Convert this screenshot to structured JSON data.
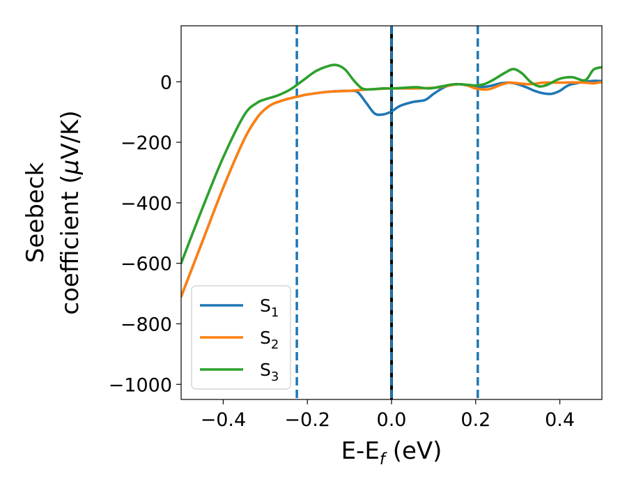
{
  "chart_data": {
    "type": "line",
    "title": "",
    "xlabel": {
      "prefix": "E-E",
      "subscript": "f",
      "suffix": " (eV)"
    },
    "ylabel": {
      "line1": "Seebeck",
      "line2_prefix": "coefficient  (",
      "line2_symbol": "μ",
      "line2_suffix": "V/K)"
    },
    "xlim": [
      -0.5,
      0.5
    ],
    "ylim": [
      -1050,
      185
    ],
    "xticks": [
      -0.4,
      -0.2,
      0.0,
      0.2,
      0.4
    ],
    "xtick_labels": [
      "−0.4",
      "−0.2",
      "0.0",
      "0.2",
      "0.4"
    ],
    "yticks": [
      0,
      -200,
      -400,
      -600,
      -800,
      -1000
    ],
    "ytick_labels": [
      "0",
      "−200",
      "−400",
      "−600",
      "−800",
      "−1000"
    ],
    "legend_position": "lower-left",
    "reference_lines": [
      {
        "x": -0.225,
        "style": "dashed",
        "color": "#1f77b4"
      },
      {
        "x": 0.0,
        "style": "solid",
        "color": "#000000"
      },
      {
        "x": 0.0,
        "style": "dashed",
        "color": "#1f77b4"
      },
      {
        "x": 0.205,
        "style": "dashed",
        "color": "#1f77b4"
      }
    ],
    "series": [
      {
        "name": "S",
        "subscript": "1",
        "color": "#1f77b4",
        "x": [
          -0.5,
          -0.45,
          -0.4,
          -0.35,
          -0.32,
          -0.3,
          -0.28,
          -0.25,
          -0.22,
          -0.2,
          -0.15,
          -0.1,
          -0.08,
          -0.06,
          -0.04,
          -0.02,
          0.0,
          0.02,
          0.05,
          0.08,
          0.1,
          0.13,
          0.16,
          0.18,
          0.2,
          0.23,
          0.26,
          0.28,
          0.3,
          0.32,
          0.34,
          0.36,
          0.38,
          0.4,
          0.42,
          0.45,
          0.48,
          0.5
        ],
        "y": [
          -710,
          -530,
          -350,
          -190,
          -120,
          -90,
          -72,
          -58,
          -48,
          -42,
          -33,
          -30,
          -35,
          -70,
          -105,
          -108,
          -98,
          -80,
          -67,
          -60,
          -40,
          -15,
          -8,
          -12,
          -18,
          -15,
          -5,
          -3,
          -8,
          -18,
          -30,
          -38,
          -40,
          -30,
          -12,
          -2,
          3,
          2
        ]
      },
      {
        "name": "S",
        "subscript": "2",
        "color": "#ff7f0e",
        "x": [
          -0.5,
          -0.45,
          -0.4,
          -0.35,
          -0.32,
          -0.3,
          -0.28,
          -0.25,
          -0.22,
          -0.2,
          -0.15,
          -0.1,
          -0.05,
          0.0,
          0.05,
          0.1,
          0.13,
          0.16,
          0.18,
          0.2,
          0.23,
          0.26,
          0.28,
          0.3,
          0.33,
          0.36,
          0.4,
          0.43,
          0.46,
          0.48,
          0.5
        ],
        "y": [
          -710,
          -530,
          -350,
          -190,
          -120,
          -90,
          -72,
          -58,
          -48,
          -42,
          -33,
          -30,
          -25,
          -22,
          -22,
          -20,
          -14,
          -8,
          -12,
          -22,
          -25,
          -10,
          -3,
          -5,
          -8,
          -3,
          -3,
          -2,
          -3,
          -5,
          -1
        ]
      },
      {
        "name": "S",
        "subscript": "3",
        "color": "#2ca02c",
        "x": [
          -0.5,
          -0.45,
          -0.4,
          -0.35,
          -0.32,
          -0.3,
          -0.27,
          -0.24,
          -0.21,
          -0.18,
          -0.15,
          -0.13,
          -0.11,
          -0.09,
          -0.07,
          -0.05,
          -0.02,
          0.0,
          0.03,
          0.06,
          0.09,
          0.12,
          0.15,
          0.18,
          0.2,
          0.22,
          0.24,
          0.27,
          0.29,
          0.31,
          0.33,
          0.35,
          0.37,
          0.4,
          0.43,
          0.46,
          0.48,
          0.5
        ],
        "y": [
          -600,
          -420,
          -250,
          -110,
          -70,
          -58,
          -45,
          -25,
          5,
          35,
          52,
          55,
          40,
          5,
          -22,
          -25,
          -22,
          -22,
          -20,
          -18,
          -22,
          -15,
          -8,
          -10,
          -12,
          -8,
          5,
          30,
          42,
          28,
          0,
          -15,
          -10,
          10,
          15,
          5,
          40,
          48
        ]
      }
    ]
  }
}
